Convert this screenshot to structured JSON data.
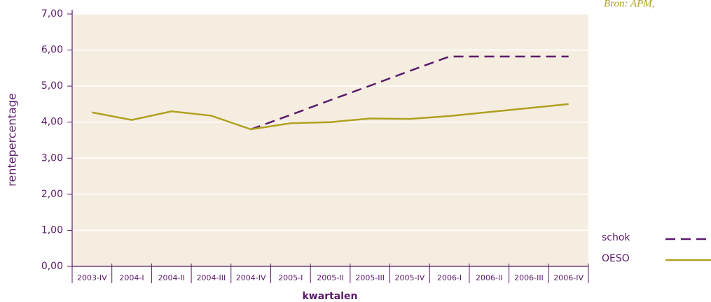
{
  "chart_data": {
    "type": "line",
    "source": "Bron: APM,",
    "ylabel": "rentepercentage",
    "xlabel": "kwartalen",
    "categories": [
      "2003-IV",
      "2004-I",
      "2004-II",
      "2004-III",
      "2004-IV",
      "2005-I",
      "2005-II",
      "2005-III",
      "2005-IV",
      "2006-I",
      "2006-II",
      "2006-III",
      "2006-IV"
    ],
    "series": [
      {
        "name": "schok",
        "color": "#5b1a6b",
        "dash": true,
        "values": [
          null,
          null,
          null,
          null,
          3.8,
          4.2,
          4.61,
          5.01,
          5.42,
          5.82,
          5.82,
          5.82,
          5.82
        ]
      },
      {
        "name": "OESO",
        "color": "#b0a020",
        "dash": false,
        "values": [
          4.27,
          4.06,
          4.3,
          4.18,
          3.8,
          3.97,
          4.0,
          4.1,
          4.09,
          4.17,
          4.28,
          4.39,
          4.5
        ]
      }
    ],
    "ylim": [
      0,
      7
    ],
    "yticks": [
      {
        "value": 0,
        "label": "0,00"
      },
      {
        "value": 1,
        "label": "1,00"
      },
      {
        "value": 2,
        "label": "2,00"
      },
      {
        "value": 3,
        "label": "3,00"
      },
      {
        "value": 4,
        "label": "4,00"
      },
      {
        "value": 5,
        "label": "5,00"
      },
      {
        "value": 6,
        "label": "6,00"
      },
      {
        "value": 7,
        "label": "7,00"
      }
    ],
    "grid": true
  }
}
